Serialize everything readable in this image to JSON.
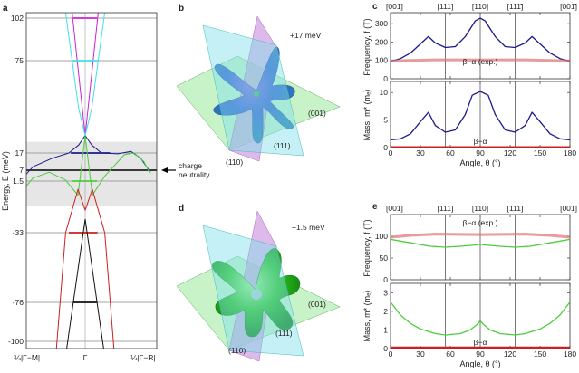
{
  "panel_labels": {
    "a": "a",
    "b": "b",
    "c": "c",
    "d": "d",
    "e": "e"
  },
  "colors": {
    "magenta": "#d020d0",
    "cyan": "#40e0e8",
    "blue": "#1a1a8c",
    "green": "#4ccc3c",
    "red": "#cc2020",
    "black": "#111111",
    "band_gray": "#e6e6e6",
    "exp_red": "#e07070"
  },
  "panel_b": {
    "energy_label": "+17 meV",
    "planes": [
      "(001)",
      "(111)",
      "(110)"
    ]
  },
  "panel_d": {
    "energy_label": "+1.5 meV",
    "planes": [
      "(001)",
      "(111)",
      "(110)"
    ]
  },
  "annotation": {
    "charge_neutrality_line1": "charge",
    "charge_neutrality_line2": "neutrality"
  },
  "chart_data": [
    {
      "panel": "a",
      "type": "line",
      "ylabel": "Energy, E (meV)",
      "xticklabels": [
        "¼|Γ−M|",
        "Γ",
        "¼|Γ−R|"
      ],
      "yticks": [
        102,
        75,
        17,
        7,
        1.5,
        -33,
        -76,
        -100
      ],
      "highlight_band_meV": [
        -15,
        24
      ],
      "charge_neutrality_meV": 7,
      "series": [
        {
          "color": "magenta",
          "points": [
            [
              -0.2,
              105
            ],
            [
              0,
              28
            ],
            [
              0.2,
              105
            ]
          ],
          "level": {
            "E": 102,
            "k": [
              -0.18,
              0.18
            ]
          }
        },
        {
          "color": "cyan",
          "points": [
            [
              -0.3,
              105
            ],
            [
              -0.2,
              75
            ],
            [
              -0.1,
              45
            ],
            [
              0,
              28
            ],
            [
              0.1,
              45
            ],
            [
              0.2,
              75
            ],
            [
              0.3,
              105
            ]
          ],
          "level": {
            "E": 75,
            "k": [
              -0.2,
              0.2
            ]
          }
        },
        {
          "color": "blue",
          "points": [
            [
              -1,
              1.5
            ],
            [
              -0.8,
              9
            ],
            [
              -0.5,
              14
            ],
            [
              -0.25,
              17
            ],
            [
              -0.1,
              22
            ],
            [
              0,
              28
            ],
            [
              0.1,
              22
            ],
            [
              0.25,
              17
            ],
            [
              0.5,
              16.5
            ],
            [
              0.7,
              18
            ],
            [
              0.85,
              14
            ],
            [
              1,
              6
            ]
          ],
          "level": {
            "E": 17,
            "k": [
              -0.22,
              0.38
            ]
          }
        },
        {
          "color": "green",
          "points": [
            [
              -1,
              -7
            ],
            [
              -0.8,
              3
            ],
            [
              -0.55,
              6
            ],
            [
              -0.3,
              2
            ],
            [
              -0.11,
              -8
            ],
            [
              0,
              28
            ],
            [
              0.11,
              -8
            ],
            [
              0.3,
              4
            ],
            [
              0.6,
              16
            ],
            [
              0.75,
              17
            ],
            [
              0.9,
              12
            ],
            [
              1,
              5
            ]
          ],
          "level": {
            "E": 1.5,
            "k": [
              -0.2,
              0.18
            ]
          }
        },
        {
          "color": "red",
          "points": [
            [
              -0.45,
              -110
            ],
            [
              -0.3,
              -33
            ],
            [
              -0.11,
              -4
            ],
            [
              0,
              -18
            ],
            [
              0.11,
              -4
            ],
            [
              0.3,
              -33
            ],
            [
              0.45,
              -110
            ]
          ],
          "level": {
            "E": -33,
            "k": [
              -0.25,
              0.19
            ]
          }
        },
        {
          "color": "black",
          "points": [
            [
              -0.3,
              -110
            ],
            [
              0,
              -24
            ],
            [
              0.3,
              -110
            ]
          ],
          "level": {
            "E": -76,
            "k": [
              -0.18,
              0.18
            ]
          }
        }
      ]
    },
    {
      "panel": "c",
      "type": "line",
      "top_labels": [
        "[001]",
        "[111]",
        "[110]",
        "[111̄]",
        "[001̄]"
      ],
      "top_label_angles": [
        0,
        55,
        90,
        125,
        180
      ],
      "xlabel": "Angle, θ (°)",
      "xticks": [
        0,
        30,
        60,
        90,
        120,
        150,
        180
      ],
      "xlim": [
        0,
        180
      ],
      "frequency": {
        "ylabel": "Frequency, f (T)",
        "ylim": [
          0,
          360
        ],
        "yticks": [
          0,
          100,
          200,
          300
        ],
        "annotation": "β−α (exp.)",
        "series": [
          {
            "color": "blue",
            "x": [
              0,
              10,
              20,
              30,
              38,
              45,
              55,
              65,
              75,
              85,
              90,
              95,
              105,
              115,
              125,
              135,
              142,
              150,
              160,
              170,
              180
            ],
            "y": [
              95,
              110,
              140,
              190,
              230,
              195,
              170,
              175,
              230,
              315,
              330,
              315,
              230,
              175,
              170,
              195,
              230,
              190,
              140,
              110,
              95
            ]
          },
          {
            "color": "exp_red",
            "x": [
              0,
              45,
              90,
              135,
              180
            ],
            "y": [
              97,
              103,
              103,
              103,
              97
            ]
          }
        ]
      },
      "mass": {
        "ylabel": "Mass, m* (mₑ)",
        "ylim": [
          0,
          12
        ],
        "yticks": [
          0,
          5,
          10
        ],
        "annotation": "β−α",
        "series": [
          {
            "color": "blue",
            "x": [
              0,
              10,
              20,
              30,
              38,
              45,
              55,
              65,
              75,
              82,
              90,
              98,
              105,
              115,
              125,
              135,
              142,
              150,
              160,
              170,
              180
            ],
            "y": [
              1.4,
              1.6,
              2.5,
              4.7,
              6.4,
              4.0,
              2.8,
              3.2,
              6.0,
              9.5,
              10.2,
              9.5,
              6.0,
              3.2,
              2.8,
              4.0,
              6.4,
              4.7,
              2.5,
              1.6,
              1.4
            ]
          },
          {
            "color": "red",
            "x": [
              0,
              180
            ],
            "y": [
              0.05,
              0.05
            ]
          }
        ]
      }
    },
    {
      "panel": "e",
      "type": "line",
      "top_labels": [
        "[001]",
        "[111]",
        "[110]",
        "[111̄]",
        "[001̄]"
      ],
      "top_label_angles": [
        0,
        55,
        90,
        125,
        180
      ],
      "xlabel": "Angle, θ (°)",
      "xticks": [
        0,
        30,
        60,
        90,
        120,
        150,
        180
      ],
      "xlim": [
        0,
        180
      ],
      "frequency": {
        "ylabel": "Frequency, f (T)",
        "ylim": [
          0,
          150
        ],
        "yticks": [
          0,
          50,
          100
        ],
        "annotation": "β−α (exp.)",
        "series": [
          {
            "color": "green",
            "x": [
              0,
              20,
              40,
              55,
              70,
              85,
              90,
              95,
              110,
              125,
              140,
              160,
              180
            ],
            "y": [
              93,
              85,
              77,
              75,
              77,
              80,
              82,
              80,
              77,
              75,
              77,
              85,
              93
            ]
          },
          {
            "color": "exp_red",
            "x": [
              0,
              20,
              45,
              90,
              135,
              160,
              180
            ],
            "y": [
              98,
              102,
              105,
              104,
              105,
              102,
              98
            ]
          }
        ]
      },
      "mass": {
        "ylabel": "Mass, m* (mₑ)",
        "ylim": [
          0,
          3.5
        ],
        "yticks": [
          0,
          1,
          2,
          3
        ],
        "annotation": "β−α",
        "series": [
          {
            "color": "green",
            "x": [
              0,
              10,
              20,
              30,
              45,
              55,
              70,
              80,
              87,
              90,
              93,
              100,
              110,
              125,
              135,
              150,
              160,
              170,
              180
            ],
            "y": [
              2.5,
              1.8,
              1.35,
              1.05,
              0.8,
              0.73,
              0.8,
              1.0,
              1.3,
              1.5,
              1.3,
              1.0,
              0.8,
              0.73,
              0.8,
              1.05,
              1.35,
              1.8,
              2.5
            ]
          },
          {
            "color": "red",
            "x": [
              0,
              180
            ],
            "y": [
              0.05,
              0.05
            ]
          }
        ]
      }
    }
  ]
}
